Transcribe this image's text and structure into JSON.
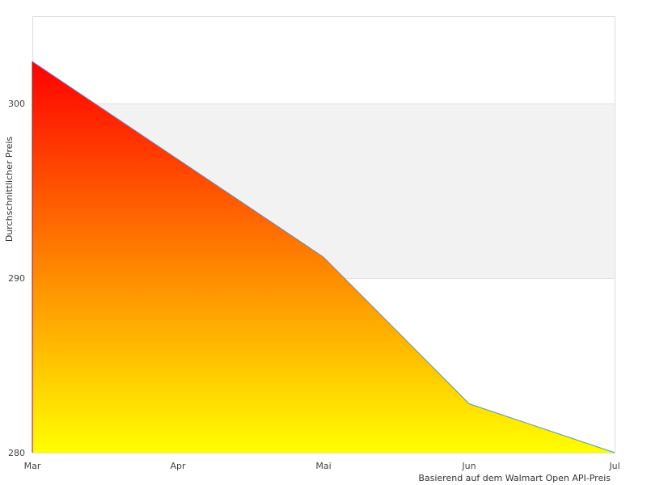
{
  "chart_data": {
    "type": "area",
    "categories": [
      "Mar",
      "Apr",
      "Mai",
      "Jun",
      "Jul"
    ],
    "values": [
      302.4,
      296.8,
      291.2,
      282.8,
      280.0
    ],
    "xlabel": "Basierend auf dem Walmart Open API-Preis",
    "ylabel": "Durchschnittlicher Preis",
    "ylim": [
      280,
      305
    ],
    "yticks": [
      280,
      290,
      300
    ],
    "grid": "alternating horizontal bands",
    "fill_gradient": [
      "#ff0000",
      "#ffff00"
    ],
    "line_color": "#4a90e2",
    "band_color": "#f2f2f2"
  }
}
